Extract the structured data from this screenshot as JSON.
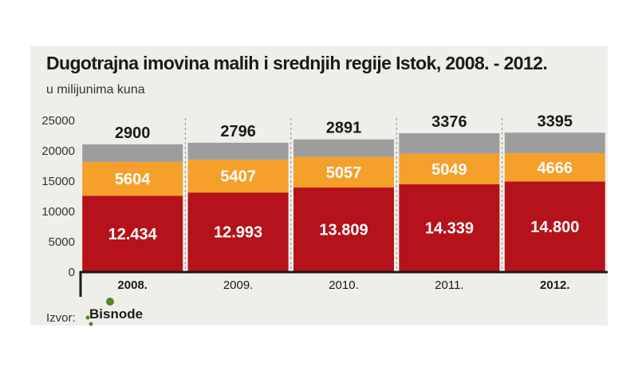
{
  "chart_data": {
    "type": "bar",
    "stacked": true,
    "title": "Dugotrajna imovina malih i srednjih regije Istok, 2008. - 2012.",
    "subtitle": "u milijunima kuna",
    "categories": [
      "2008.",
      "2009.",
      "2010.",
      "2011.",
      "2012."
    ],
    "bold_categories": [
      true,
      false,
      false,
      false,
      true
    ],
    "series": [
      {
        "values": [
          12434,
          12993,
          13809,
          14339,
          14800
        ],
        "labels": [
          "12.434",
          "12.993",
          "13.809",
          "14.339",
          "14.800"
        ],
        "color": "#b5121b"
      },
      {
        "values": [
          5604,
          5407,
          5057,
          5049,
          4666
        ],
        "labels": [
          "5604",
          "5407",
          "5057",
          "5049",
          "4666"
        ],
        "color": "#f5a02a"
      },
      {
        "values": [
          2900,
          2796,
          2891,
          3376,
          3395
        ],
        "labels": [
          "2900",
          "2796",
          "2891",
          "3376",
          "3395"
        ],
        "color": "#9d9d9d"
      }
    ],
    "yticks": [
      "0",
      "5000",
      "10000",
      "15000",
      "20000",
      "25000"
    ],
    "ylim": [
      0,
      25000
    ],
    "grid": false
  },
  "source": {
    "label": "Izvor:",
    "logo_text": "Bisnode"
  },
  "colors": {
    "panel": "#efefea",
    "axis": "#1a1a1a",
    "logo_green": "#4a8a2a"
  }
}
